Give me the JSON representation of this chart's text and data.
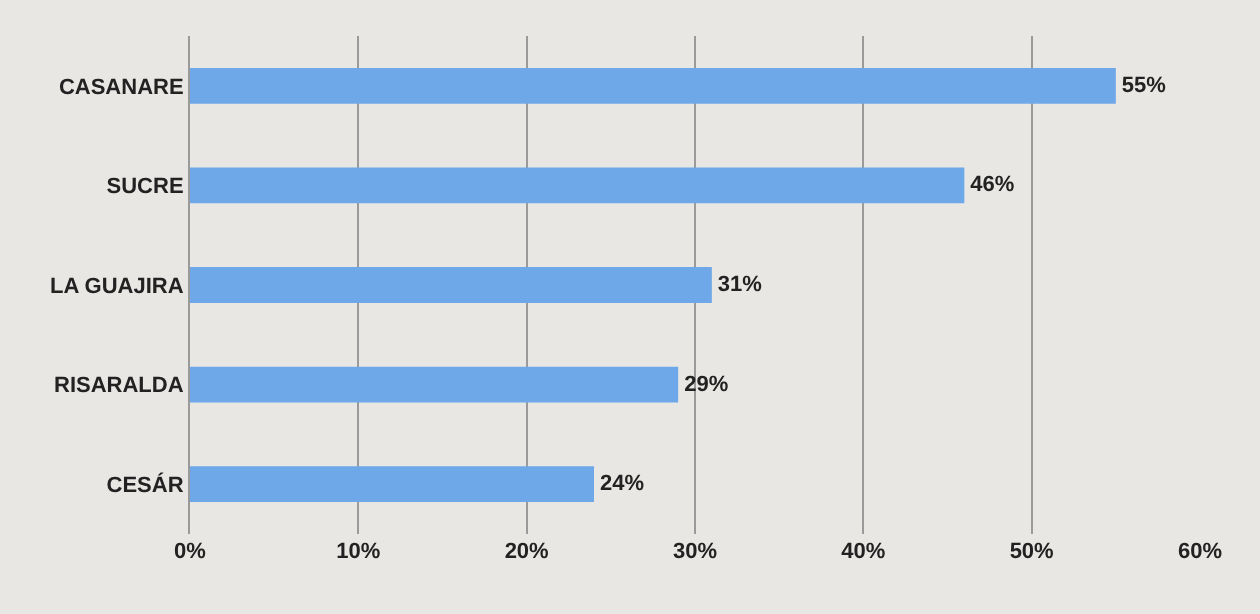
{
  "chart_data": {
    "type": "bar",
    "orientation": "horizontal",
    "categories": [
      "CASANARE",
      "SUCRE",
      "LA GUAJIRA",
      "RISARALDA",
      "CESÁR"
    ],
    "values": [
      55,
      46,
      31,
      29,
      24
    ],
    "value_labels": [
      "55%",
      "46%",
      "31%",
      "29%",
      "24%"
    ],
    "color": "#6fa8e8",
    "xlim": [
      0,
      60
    ],
    "xticks": [
      {
        "value": 0,
        "label": "0%"
      },
      {
        "value": 10,
        "label": "10%"
      },
      {
        "value": 20,
        "label": "20%"
      },
      {
        "value": 30,
        "label": "30%"
      },
      {
        "value": 40,
        "label": "40%"
      },
      {
        "value": 50,
        "label": "50%"
      },
      {
        "value": 60,
        "label": "60%"
      }
    ],
    "grid": "x"
  }
}
